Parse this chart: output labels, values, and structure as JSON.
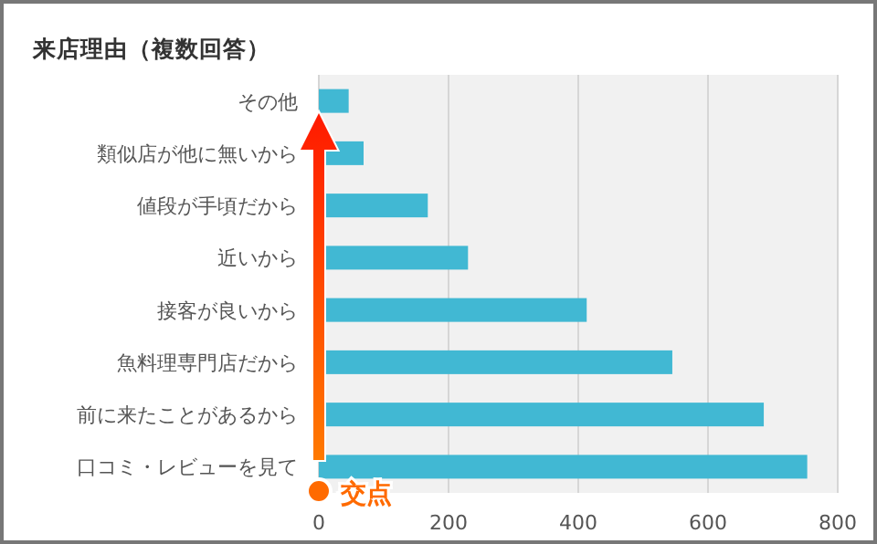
{
  "chart_data": {
    "type": "bar",
    "orientation": "horizontal",
    "title": "来店理由（複数回答）",
    "categories": [
      "その他",
      "類似店が他に無いから",
      "値段が手頃だから",
      "近いから",
      "接客が良いから",
      "魚料理専門店だから",
      "前に来たことがあるから",
      "口コミ・レビューを見て"
    ],
    "values": [
      46,
      69,
      168,
      230,
      413,
      545,
      686,
      753
    ],
    "color": "#41b8d3",
    "xlim": [
      0,
      800
    ],
    "xticks": [
      0,
      200,
      400,
      600,
      800
    ],
    "grid": "x",
    "annotations": [
      "交点"
    ]
  }
}
